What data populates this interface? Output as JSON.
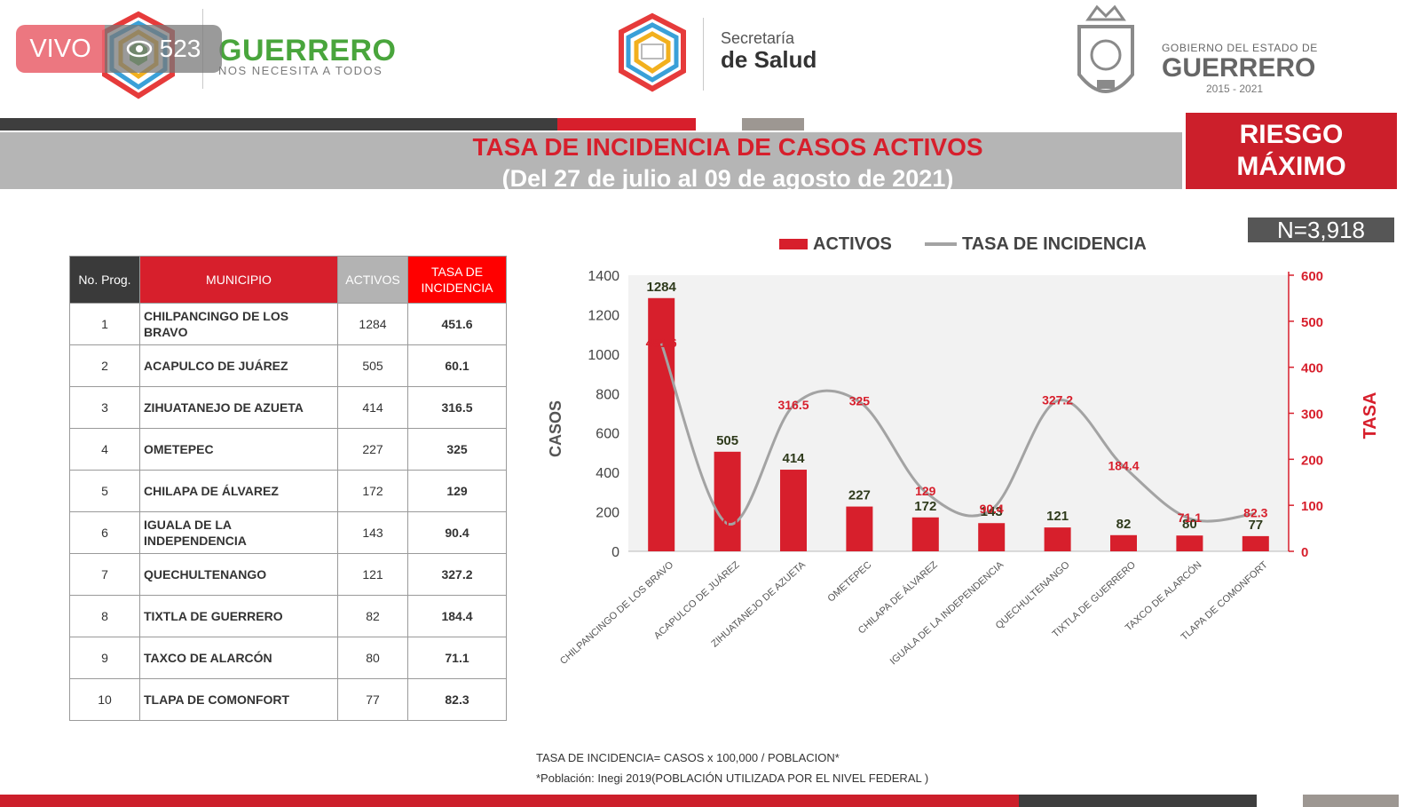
{
  "live": {
    "label": "VIVO",
    "viewers": "523",
    "icon": "eye-icon"
  },
  "header": {
    "guerrero_brand": "GUERRERO",
    "guerrero_tagline": "NOS NECESITA A TODOS",
    "salud_line1": "Secretaría",
    "salud_line2": "de Salud",
    "gob_line1": "GOBIERNO DEL ESTADO DE",
    "gob_line2": "GUERRERO",
    "gob_line3": "2015 - 2021"
  },
  "title": {
    "line1": "TASA DE INCIDENCIA DE CASOS ACTIVOS",
    "line2": "(Del 27 de julio al 09 de agosto de 2021)"
  },
  "risk_badge": {
    "line1": "RIESGO",
    "line2": "MÁXIMO"
  },
  "total": "N=3,918",
  "table": {
    "headers": [
      "No. Prog.",
      "MUNICIPIO",
      "ACTIVOS",
      "TASA DE INCIDENCIA"
    ],
    "rows": [
      [
        "1",
        "CHILPANCINGO DE LOS BRAVO",
        "1284",
        "451.6"
      ],
      [
        "2",
        "ACAPULCO DE JUÁREZ",
        "505",
        "60.1"
      ],
      [
        "3",
        "ZIHUATANEJO DE AZUETA",
        "414",
        "316.5"
      ],
      [
        "4",
        "OMETEPEC",
        "227",
        "325"
      ],
      [
        "5",
        "CHILAPA DE ÁLVAREZ",
        "172",
        "129"
      ],
      [
        "6",
        "IGUALA DE LA INDEPENDENCIA",
        "143",
        "90.4"
      ],
      [
        "7",
        "QUECHULTENANGO",
        "121",
        "327.2"
      ],
      [
        "8",
        "TIXTLA DE GUERRERO",
        "82",
        "184.4"
      ],
      [
        "9",
        "TAXCO DE ALARCÓN",
        "80",
        "71.1"
      ],
      [
        "10",
        "TLAPA DE COMONFORT",
        "77",
        "82.3"
      ]
    ]
  },
  "chart_data": {
    "type": "bar",
    "categories": [
      "CHILPANCINGO DE LOS BRAVO",
      "ACAPULCO DE JUÁREZ",
      "ZIHUATANEJO DE AZUETA",
      "OMETEPEC",
      "CHILAPA DE ÁLVAREZ",
      "IGUALA DE LA INDEPENDENCIA",
      "QUECHULTENANGO",
      "TIXTLA DE GUERRERO",
      "TAXCO DE ALARCÓN",
      "TLAPA DE COMONFORT"
    ],
    "series": [
      {
        "name": "ACTIVOS",
        "type": "bar",
        "axis": "left",
        "color": "#d71f2c",
        "values": [
          1284,
          505,
          414,
          227,
          172,
          143,
          121,
          82,
          80,
          77
        ]
      },
      {
        "name": "TASA DE INCIDENCIA",
        "type": "line",
        "axis": "right",
        "color": "#a3a3a3",
        "values": [
          451.6,
          60.1,
          316.5,
          325,
          129,
          90.4,
          327.2,
          184.4,
          71.1,
          82.3
        ]
      }
    ],
    "ylabel": "CASOS",
    "y2label": "TASA",
    "ylim": [
      0,
      1400
    ],
    "y2lim": [
      0,
      600
    ],
    "yticks": [
      0,
      200,
      400,
      600,
      800,
      1000,
      1200,
      1400
    ],
    "y2ticks": [
      0,
      100,
      200,
      300,
      400,
      500,
      600
    ],
    "legend_position": "top",
    "colors": {
      "bars": "#d71f2c",
      "line": "#a3a3a3",
      "rate_labels": "#d71f2c",
      "count_labels": "#2f3b1c"
    }
  },
  "footnotes": {
    "line1": "TASA DE INCIDENCIA= CASOS x 100,000 / POBLACION*",
    "line2": "*Población: Inegi 2019(POBLACIÓN UTILIZADA POR EL NIVEL FEDERAL )"
  }
}
